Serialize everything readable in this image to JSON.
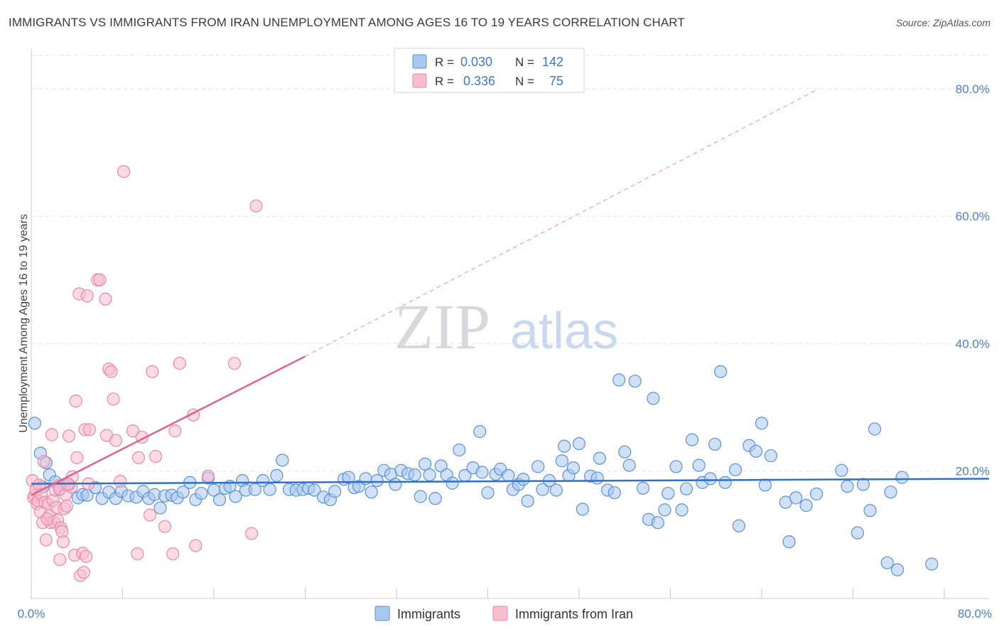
{
  "header": {
    "title": "IMMIGRANTS VS IMMIGRANTS FROM IRAN UNEMPLOYMENT AMONG AGES 16 TO 19 YEARS CORRELATION CHART",
    "source": "Source: ZipAtlas.com"
  },
  "watermark": {
    "zip": "ZIP",
    "atlas": "atlas"
  },
  "colors": {
    "blue_fill": "#a9c8f0",
    "blue_stroke": "#5b91d8",
    "blue_line": "#2f6fd0",
    "pink_fill": "#f7bccd",
    "pink_stroke": "#ea8aa8",
    "pink_line": "#e0648c",
    "grid": "#e3e3ea",
    "tick_text": "#4a7fcf"
  },
  "legend": {
    "rows": [
      {
        "r_label": "R =",
        "r_value": "0.030",
        "n_label": "N =",
        "n_value": "142"
      },
      {
        "r_label": "R =",
        "r_value": "0.336",
        "n_label": "N =",
        "n_value": "75"
      }
    ]
  },
  "bottom_legend": {
    "series1": "Immigrants",
    "series2": "Immigrants from Iran"
  },
  "chart_data": {
    "type": "scatter",
    "title": "IMMIGRANTS VS IMMIGRANTS FROM IRAN UNEMPLOYMENT AMONG AGES 16 TO 19 YEARS CORRELATION CHART",
    "xlabel": "",
    "ylabel": "Unemployment Among Ages 16 to 19 years",
    "xlim": [
      0,
      80
    ],
    "ylim": [
      0,
      85
    ],
    "x_tick_labels": [
      "0.0%",
      "80.0%"
    ],
    "y_tick_labels": [
      "20.0%",
      "40.0%",
      "60.0%",
      "80.0%"
    ],
    "y_ticks": [
      20,
      40,
      60,
      80
    ],
    "grid": true,
    "series": [
      {
        "name": "Immigrants",
        "r": 0.03,
        "n": 142,
        "trend": {
          "x": [
            0,
            80
          ],
          "y": [
            18.0,
            18.8
          ],
          "style": "solid"
        },
        "points": [
          [
            0.3,
            27.5
          ],
          [
            0.8,
            22.8
          ],
          [
            1.0,
            17.5
          ],
          [
            1.3,
            21.3
          ],
          [
            1.6,
            19.4
          ],
          [
            2.1,
            18.3
          ],
          [
            2.5,
            17.1
          ],
          [
            2.9,
            17.8
          ],
          [
            3.3,
            17.9
          ],
          [
            4.1,
            15.8
          ],
          [
            4.5,
            16.3
          ],
          [
            4.9,
            16.2
          ],
          [
            5.6,
            17.4
          ],
          [
            6.2,
            15.7
          ],
          [
            6.8,
            16.7
          ],
          [
            7.4,
            15.7
          ],
          [
            7.9,
            16.8
          ],
          [
            8.5,
            16.1
          ],
          [
            9.2,
            15.9
          ],
          [
            9.8,
            16.8
          ],
          [
            10.3,
            15.7
          ],
          [
            10.8,
            16.3
          ],
          [
            11.3,
            14.2
          ],
          [
            11.7,
            16.1
          ],
          [
            12.3,
            16.2
          ],
          [
            12.8,
            15.8
          ],
          [
            13.3,
            16.7
          ],
          [
            13.9,
            18.2
          ],
          [
            14.4,
            15.5
          ],
          [
            14.9,
            16.5
          ],
          [
            15.5,
            18.9
          ],
          [
            16.0,
            17.0
          ],
          [
            16.5,
            15.5
          ],
          [
            17.0,
            17.3
          ],
          [
            17.4,
            17.6
          ],
          [
            17.9,
            16.0
          ],
          [
            18.5,
            18.5
          ],
          [
            18.8,
            17.0
          ],
          [
            19.6,
            17.1
          ],
          [
            20.3,
            18.5
          ],
          [
            20.9,
            17.1
          ],
          [
            21.5,
            19.3
          ],
          [
            22.0,
            21.7
          ],
          [
            22.6,
            17.1
          ],
          [
            23.2,
            17.0
          ],
          [
            23.8,
            17.1
          ],
          [
            24.3,
            17.3
          ],
          [
            24.8,
            17.0
          ],
          [
            25.6,
            15.9
          ],
          [
            26.2,
            15.5
          ],
          [
            26.6,
            16.8
          ],
          [
            27.4,
            18.7
          ],
          [
            27.8,
            19.0
          ],
          [
            28.3,
            17.4
          ],
          [
            28.7,
            17.6
          ],
          [
            29.3,
            18.8
          ],
          [
            29.8,
            16.7
          ],
          [
            30.3,
            18.5
          ],
          [
            30.9,
            20.1
          ],
          [
            31.5,
            19.5
          ],
          [
            31.9,
            17.9
          ],
          [
            32.4,
            20.1
          ],
          [
            33.0,
            19.6
          ],
          [
            33.6,
            19.4
          ],
          [
            34.1,
            16.0
          ],
          [
            34.5,
            21.1
          ],
          [
            34.9,
            19.4
          ],
          [
            35.4,
            15.7
          ],
          [
            35.9,
            20.8
          ],
          [
            36.4,
            19.4
          ],
          [
            36.9,
            18.1
          ],
          [
            37.5,
            23.3
          ],
          [
            38.0,
            19.3
          ],
          [
            38.7,
            20.5
          ],
          [
            39.3,
            26.2
          ],
          [
            39.5,
            19.8
          ],
          [
            40.0,
            16.6
          ],
          [
            40.7,
            19.5
          ],
          [
            41.1,
            20.3
          ],
          [
            41.8,
            19.3
          ],
          [
            42.2,
            17.1
          ],
          [
            42.7,
            17.9
          ],
          [
            43.1,
            18.7
          ],
          [
            43.5,
            15.3
          ],
          [
            44.4,
            20.7
          ],
          [
            44.8,
            17.1
          ],
          [
            45.4,
            18.5
          ],
          [
            46.0,
            17.0
          ],
          [
            46.5,
            21.6
          ],
          [
            46.7,
            23.9
          ],
          [
            47.1,
            19.3
          ],
          [
            47.5,
            20.5
          ],
          [
            48.0,
            24.3
          ],
          [
            48.3,
            14.0
          ],
          [
            49.0,
            19.2
          ],
          [
            49.6,
            18.9
          ],
          [
            49.8,
            22.0
          ],
          [
            50.5,
            17.0
          ],
          [
            51.1,
            16.6
          ],
          [
            51.5,
            34.3
          ],
          [
            52.0,
            23.0
          ],
          [
            52.4,
            20.9
          ],
          [
            52.9,
            34.1
          ],
          [
            53.6,
            17.3
          ],
          [
            54.1,
            12.4
          ],
          [
            54.5,
            31.4
          ],
          [
            54.9,
            11.9
          ],
          [
            55.5,
            13.9
          ],
          [
            55.8,
            16.5
          ],
          [
            56.5,
            20.7
          ],
          [
            57.0,
            13.9
          ],
          [
            57.4,
            17.2
          ],
          [
            57.9,
            24.9
          ],
          [
            58.5,
            20.9
          ],
          [
            58.8,
            18.2
          ],
          [
            59.5,
            18.8
          ],
          [
            59.9,
            24.2
          ],
          [
            60.4,
            35.6
          ],
          [
            60.8,
            18.2
          ],
          [
            61.7,
            20.2
          ],
          [
            62.0,
            11.4
          ],
          [
            62.9,
            24.0
          ],
          [
            63.5,
            23.1
          ],
          [
            64.0,
            27.5
          ],
          [
            64.3,
            17.8
          ],
          [
            64.8,
            22.4
          ],
          [
            66.1,
            15.1
          ],
          [
            66.4,
            8.9
          ],
          [
            67.0,
            15.8
          ],
          [
            67.9,
            14.6
          ],
          [
            68.8,
            16.4
          ],
          [
            71.0,
            20.1
          ],
          [
            71.5,
            17.6
          ],
          [
            72.4,
            10.3
          ],
          [
            72.9,
            17.9
          ],
          [
            73.5,
            13.8
          ],
          [
            73.9,
            26.6
          ],
          [
            75.0,
            5.6
          ],
          [
            75.3,
            16.7
          ],
          [
            75.9,
            4.5
          ],
          [
            76.3,
            19.0
          ],
          [
            78.9,
            5.4
          ]
        ]
      },
      {
        "name": "Immigrants from Iran",
        "r": 0.336,
        "n": 75,
        "trend": {
          "x": [
            0,
            24
          ],
          "y": [
            16.2,
            38.0
          ],
          "extended_x": [
            24,
            69
          ],
          "extended_y": [
            38.0,
            80.0
          ],
          "style": "solid then dashed"
        },
        "points": [
          [
            0.1,
            18.5
          ],
          [
            0.2,
            15.8
          ],
          [
            0.3,
            16.2
          ],
          [
            0.4,
            17.0
          ],
          [
            0.5,
            14.9
          ],
          [
            0.6,
            15.3
          ],
          [
            0.7,
            17.8
          ],
          [
            0.8,
            13.6
          ],
          [
            0.9,
            16.3
          ],
          [
            1.0,
            11.9
          ],
          [
            1.1,
            21.5
          ],
          [
            1.2,
            15.1
          ],
          [
            1.3,
            9.2
          ],
          [
            1.5,
            14.8
          ],
          [
            1.6,
            13.0
          ],
          [
            1.7,
            11.9
          ],
          [
            1.8,
            25.7
          ],
          [
            1.9,
            15.4
          ],
          [
            2.0,
            12.0
          ],
          [
            2.1,
            17.0
          ],
          [
            2.2,
            14.3
          ],
          [
            2.3,
            12.3
          ],
          [
            2.4,
            17.7
          ],
          [
            2.5,
            17.2
          ],
          [
            2.6,
            11.1
          ],
          [
            2.7,
            10.5
          ],
          [
            2.8,
            8.9
          ],
          [
            2.9,
            14.1
          ],
          [
            3.0,
            16.3
          ],
          [
            3.1,
            14.5
          ],
          [
            3.3,
            25.5
          ],
          [
            3.5,
            17.5
          ],
          [
            3.6,
            19.1
          ],
          [
            3.8,
            6.8
          ],
          [
            3.9,
            31.0
          ],
          [
            4.0,
            22.1
          ],
          [
            4.2,
            47.8
          ],
          [
            4.3,
            3.6
          ],
          [
            4.5,
            7.1
          ],
          [
            4.6,
            4.1
          ],
          [
            4.7,
            26.5
          ],
          [
            4.9,
            47.5
          ],
          [
            5.0,
            18.0
          ],
          [
            5.1,
            26.5
          ],
          [
            5.8,
            50.0
          ],
          [
            6.0,
            50.0
          ],
          [
            6.5,
            47.0
          ],
          [
            6.6,
            25.6
          ],
          [
            6.8,
            36.0
          ],
          [
            7.0,
            35.6
          ],
          [
            7.2,
            31.3
          ],
          [
            7.4,
            24.8
          ],
          [
            7.8,
            18.4
          ],
          [
            8.1,
            67.0
          ],
          [
            8.9,
            26.3
          ],
          [
            9.3,
            7.0
          ],
          [
            9.4,
            22.1
          ],
          [
            9.7,
            25.3
          ],
          [
            10.4,
            13.1
          ],
          [
            10.6,
            35.6
          ],
          [
            10.9,
            22.3
          ],
          [
            11.7,
            11.3
          ],
          [
            12.4,
            7.0
          ],
          [
            12.6,
            26.3
          ],
          [
            13.0,
            36.9
          ],
          [
            14.2,
            28.8
          ],
          [
            14.4,
            8.3
          ],
          [
            15.5,
            19.2
          ],
          [
            17.8,
            36.9
          ],
          [
            19.3,
            10.2
          ],
          [
            19.7,
            61.6
          ],
          [
            1.4,
            12.5
          ],
          [
            2.5,
            6.1
          ],
          [
            3.2,
            17.9
          ],
          [
            4.8,
            6.6
          ]
        ]
      }
    ]
  }
}
